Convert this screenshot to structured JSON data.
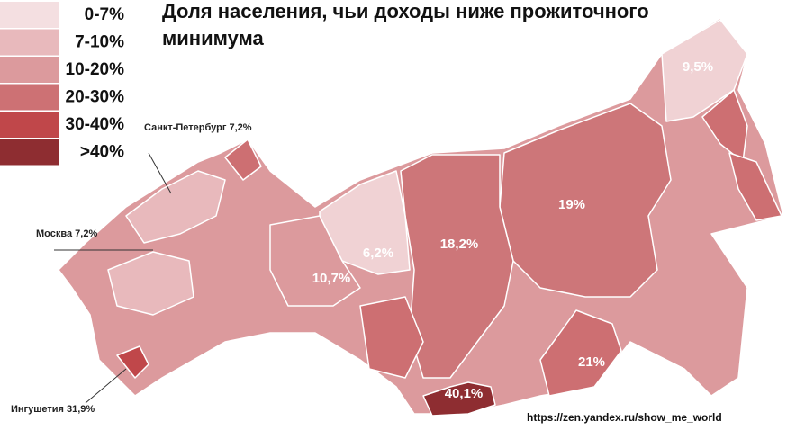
{
  "title": "Доля населения, чьи доходы ниже прожиточного минимума",
  "legend": [
    {
      "label": "0-7%",
      "color": "#f4dfe1"
    },
    {
      "label": "7-10%",
      "color": "#e8b9bc"
    },
    {
      "label": "10-20%",
      "color": "#dc9a9d"
    },
    {
      "label": "20-30%",
      "color": "#cd7174"
    },
    {
      "label": "30-40%",
      "color": "#c0474a"
    },
    {
      "label": ">40%",
      "color": "#8e2d31"
    }
  ],
  "region_labels": [
    "9,5%",
    "19%",
    "18,2%",
    "6,2%",
    "10,7%",
    "21%",
    "40,1%"
  ],
  "callouts": [
    "Санкт-Петербург 7,2%",
    "Москва 7,2%",
    "Ингушетия 31,9%"
  ],
  "source": "https://zen.yandex.ru/show_me_world"
}
